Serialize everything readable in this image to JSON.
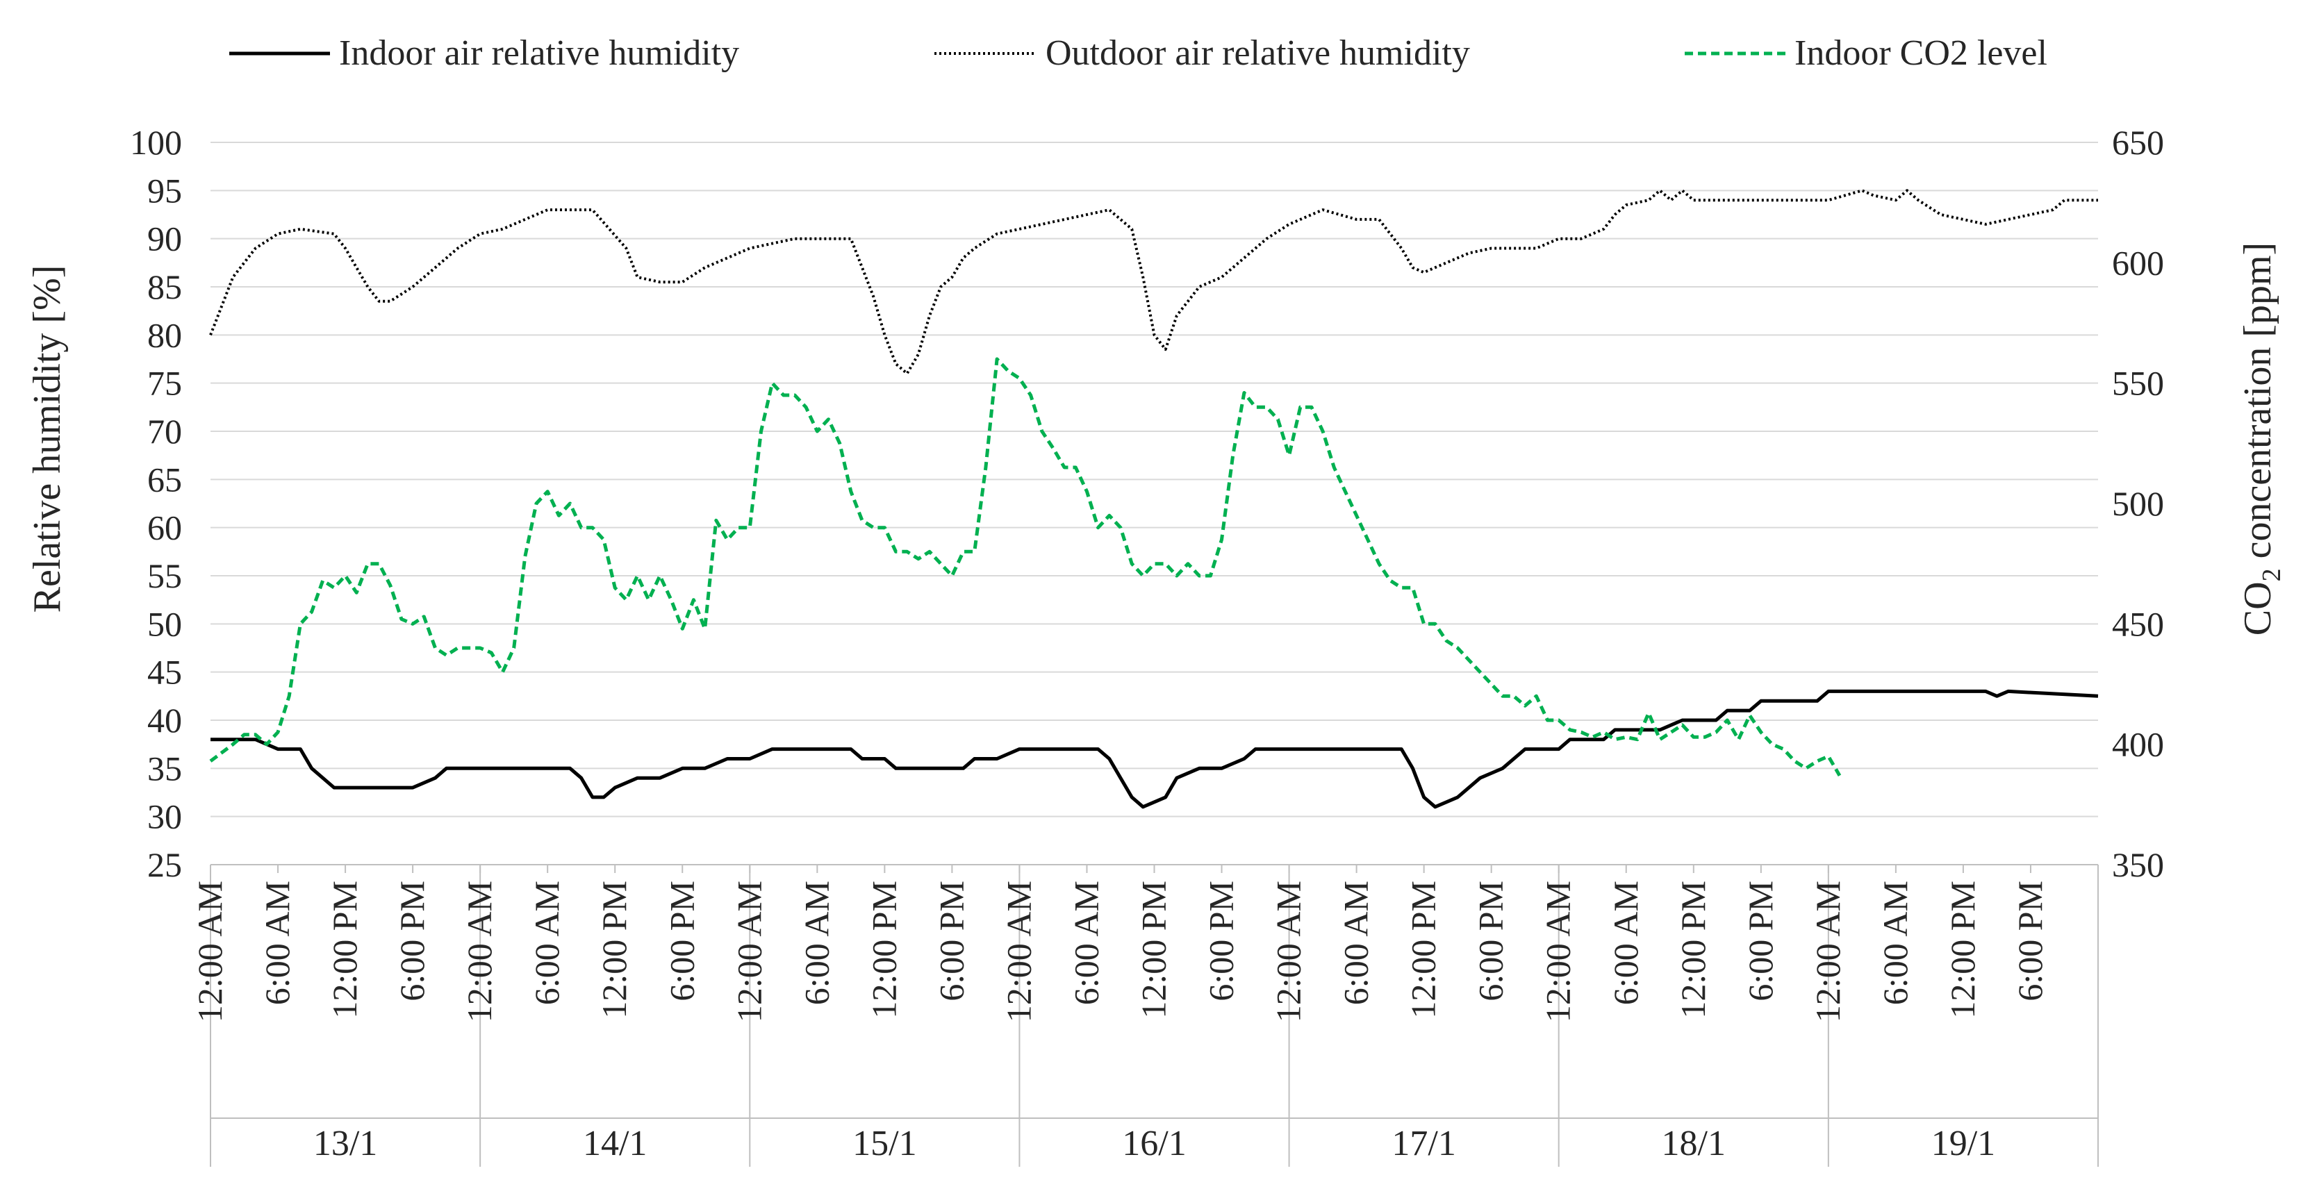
{
  "chart_data": {
    "type": "line",
    "title": "",
    "legend": {
      "position": "top",
      "entries": [
        "Indoor air relative humidity",
        "Outdoor air relative humidity",
        "Indoor CO2 level"
      ]
    },
    "y_left": {
      "label_main": "Relative humidity [%]",
      "ylim": [
        25,
        100
      ],
      "ticks": [
        "25",
        "30",
        "35",
        "40",
        "45",
        "50",
        "55",
        "60",
        "65",
        "70",
        "75",
        "80",
        "85",
        "90",
        "95",
        "100"
      ]
    },
    "y_right": {
      "label_prefix": "CO",
      "label_sub": "2",
      "label_suffix": " concentration [ppm]",
      "ylim": [
        350,
        650
      ],
      "ticks": [
        "350",
        "400",
        "450",
        "500",
        "550",
        "600",
        "650"
      ]
    },
    "x_axis": {
      "range_hours": [
        0,
        168
      ],
      "tick_labels": [
        "12:00 AM",
        "6:00 AM",
        "12:00 PM",
        "6:00 PM"
      ],
      "days": [
        "13/1",
        "14/1",
        "15/1",
        "16/1",
        "17/1",
        "18/1",
        "19/1"
      ]
    },
    "series": [
      {
        "name": "Indoor air relative humidity",
        "axis": "left",
        "color": "#000000",
        "style": "solid",
        "points": [
          [
            0,
            38
          ],
          [
            4,
            38
          ],
          [
            6,
            37
          ],
          [
            8,
            37
          ],
          [
            9,
            35
          ],
          [
            11,
            33
          ],
          [
            12,
            33
          ],
          [
            16,
            33
          ],
          [
            18,
            33
          ],
          [
            20,
            34
          ],
          [
            21,
            35
          ],
          [
            24,
            35
          ],
          [
            32,
            35
          ],
          [
            33,
            34
          ],
          [
            34,
            32
          ],
          [
            35,
            32
          ],
          [
            36,
            33
          ],
          [
            38,
            34
          ],
          [
            40,
            34
          ],
          [
            42,
            35
          ],
          [
            44,
            35
          ],
          [
            46,
            36
          ],
          [
            48,
            36
          ],
          [
            50,
            37
          ],
          [
            57,
            37
          ],
          [
            58,
            36
          ],
          [
            60,
            36
          ],
          [
            61,
            35
          ],
          [
            67,
            35
          ],
          [
            68,
            36
          ],
          [
            70,
            36
          ],
          [
            72,
            37
          ],
          [
            79,
            37
          ],
          [
            80,
            36
          ],
          [
            81,
            34
          ],
          [
            82,
            32
          ],
          [
            83,
            31
          ],
          [
            85,
            32
          ],
          [
            86,
            34
          ],
          [
            88,
            35
          ],
          [
            90,
            35
          ],
          [
            92,
            36
          ],
          [
            93,
            37
          ],
          [
            106,
            37
          ],
          [
            107,
            35
          ],
          [
            108,
            32
          ],
          [
            109,
            31
          ],
          [
            111,
            32
          ],
          [
            113,
            34
          ],
          [
            115,
            35
          ],
          [
            117,
            37
          ],
          [
            120,
            37
          ],
          [
            121,
            38
          ],
          [
            124,
            38
          ],
          [
            125,
            39
          ],
          [
            129,
            39
          ],
          [
            131,
            40
          ],
          [
            134,
            40
          ],
          [
            135,
            41
          ],
          [
            137,
            41
          ],
          [
            138,
            42
          ],
          [
            143,
            42
          ],
          [
            144,
            43
          ],
          [
            158,
            43
          ],
          [
            159,
            42.5
          ],
          [
            160,
            43
          ],
          [
            168,
            42.5
          ]
        ]
      },
      {
        "name": "Outdoor air relative humidity",
        "axis": "left",
        "color": "#000000",
        "style": "dotted",
        "points": [
          [
            0,
            80
          ],
          [
            1,
            83
          ],
          [
            2,
            86
          ],
          [
            4,
            89
          ],
          [
            6,
            90.5
          ],
          [
            8,
            91
          ],
          [
            11,
            90.5
          ],
          [
            12,
            89
          ],
          [
            13,
            87
          ],
          [
            14,
            85
          ],
          [
            15,
            83.5
          ],
          [
            16,
            83.5
          ],
          [
            18,
            85
          ],
          [
            20,
            87
          ],
          [
            22,
            89
          ],
          [
            24,
            90.5
          ],
          [
            26,
            91
          ],
          [
            28,
            92
          ],
          [
            30,
            93
          ],
          [
            34,
            93
          ],
          [
            37,
            89
          ],
          [
            38,
            86
          ],
          [
            40,
            85.5
          ],
          [
            42,
            85.5
          ],
          [
            44,
            87
          ],
          [
            46,
            88
          ],
          [
            48,
            89
          ],
          [
            50,
            89.5
          ],
          [
            52,
            90
          ],
          [
            57,
            90
          ],
          [
            58,
            87
          ],
          [
            59,
            84
          ],
          [
            60,
            80
          ],
          [
            61,
            77
          ],
          [
            62,
            76
          ],
          [
            63,
            78
          ],
          [
            64,
            82
          ],
          [
            65,
            85
          ],
          [
            66,
            86
          ],
          [
            67,
            88
          ],
          [
            68,
            89
          ],
          [
            70,
            90.5
          ],
          [
            72,
            91
          ],
          [
            74,
            91.5
          ],
          [
            78,
            92.5
          ],
          [
            80,
            93
          ],
          [
            82,
            91
          ],
          [
            83,
            86
          ],
          [
            84,
            80
          ],
          [
            85,
            78.5
          ],
          [
            86,
            82
          ],
          [
            88,
            85
          ],
          [
            90,
            86
          ],
          [
            92,
            88
          ],
          [
            94,
            90
          ],
          [
            96,
            91.5
          ],
          [
            98,
            92.5
          ],
          [
            99,
            93
          ],
          [
            102,
            92
          ],
          [
            104,
            92
          ],
          [
            106,
            89
          ],
          [
            107,
            87
          ],
          [
            108,
            86.5
          ],
          [
            110,
            87.5
          ],
          [
            112,
            88.5
          ],
          [
            114,
            89
          ],
          [
            118,
            89
          ],
          [
            120,
            90
          ],
          [
            122,
            90
          ],
          [
            124,
            91
          ],
          [
            125,
            92.5
          ],
          [
            126,
            93.5
          ],
          [
            128,
            94
          ],
          [
            129,
            95
          ],
          [
            130,
            94
          ],
          [
            131,
            95
          ],
          [
            132,
            94
          ],
          [
            139,
            94
          ],
          [
            144,
            94
          ],
          [
            147,
            95
          ],
          [
            148,
            94.5
          ],
          [
            150,
            94
          ],
          [
            151,
            95
          ],
          [
            152,
            94
          ],
          [
            154,
            92.5
          ],
          [
            156,
            92
          ],
          [
            158,
            91.5
          ],
          [
            160,
            92
          ],
          [
            162,
            92.5
          ],
          [
            164,
            93
          ],
          [
            165,
            94
          ],
          [
            166,
            94
          ],
          [
            168,
            94
          ]
        ]
      },
      {
        "name": "Indoor CO2 level",
        "axis": "right",
        "color": "#00b050",
        "style": "dashed",
        "points": [
          [
            0,
            393
          ],
          [
            2,
            400
          ],
          [
            3,
            404
          ],
          [
            4,
            404
          ],
          [
            5,
            400
          ],
          [
            6,
            405
          ],
          [
            7,
            420
          ],
          [
            8,
            450
          ],
          [
            9,
            455
          ],
          [
            10,
            468
          ],
          [
            11,
            465
          ],
          [
            12,
            470
          ],
          [
            13,
            463
          ],
          [
            14,
            475
          ],
          [
            15,
            475
          ],
          [
            16,
            466
          ],
          [
            17,
            452
          ],
          [
            18,
            450
          ],
          [
            19,
            453
          ],
          [
            20,
            440
          ],
          [
            21,
            437
          ],
          [
            22,
            440
          ],
          [
            24,
            440
          ],
          [
            25,
            438
          ],
          [
            26,
            430
          ],
          [
            27,
            440
          ],
          [
            28,
            478
          ],
          [
            29,
            500
          ],
          [
            30,
            505
          ],
          [
            31,
            495
          ],
          [
            32,
            500
          ],
          [
            33,
            490
          ],
          [
            34,
            490
          ],
          [
            35,
            485
          ],
          [
            36,
            465
          ],
          [
            37,
            460
          ],
          [
            38,
            470
          ],
          [
            39,
            460
          ],
          [
            40,
            470
          ],
          [
            41,
            460
          ],
          [
            42,
            448
          ],
          [
            43,
            460
          ],
          [
            44,
            448
          ],
          [
            45,
            493
          ],
          [
            46,
            485
          ],
          [
            47,
            490
          ],
          [
            48,
            490
          ],
          [
            49,
            530
          ],
          [
            50,
            550
          ],
          [
            51,
            545
          ],
          [
            52,
            545
          ],
          [
            53,
            540
          ],
          [
            54,
            530
          ],
          [
            55,
            535
          ],
          [
            56,
            525
          ],
          [
            57,
            505
          ],
          [
            58,
            493
          ],
          [
            59,
            490
          ],
          [
            60,
            490
          ],
          [
            61,
            480
          ],
          [
            62,
            480
          ],
          [
            63,
            477
          ],
          [
            64,
            480
          ],
          [
            65,
            475
          ],
          [
            66,
            470
          ],
          [
            67,
            480
          ],
          [
            68,
            480
          ],
          [
            69,
            515
          ],
          [
            70,
            560
          ],
          [
            71,
            555
          ],
          [
            72,
            552
          ],
          [
            73,
            545
          ],
          [
            74,
            530
          ],
          [
            75,
            523
          ],
          [
            76,
            515
          ],
          [
            77,
            515
          ],
          [
            78,
            505
          ],
          [
            79,
            490
          ],
          [
            80,
            495
          ],
          [
            81,
            490
          ],
          [
            82,
            475
          ],
          [
            83,
            470
          ],
          [
            84,
            475
          ],
          [
            85,
            475
          ],
          [
            86,
            470
          ],
          [
            87,
            475
          ],
          [
            88,
            470
          ],
          [
            89,
            470
          ],
          [
            90,
            485
          ],
          [
            91,
            520
          ],
          [
            92,
            546
          ],
          [
            93,
            540
          ],
          [
            94,
            540
          ],
          [
            95,
            535
          ],
          [
            96,
            520
          ],
          [
            97,
            540
          ],
          [
            98,
            540
          ],
          [
            99,
            530
          ],
          [
            100,
            515
          ],
          [
            101,
            505
          ],
          [
            102,
            495
          ],
          [
            103,
            485
          ],
          [
            104,
            475
          ],
          [
            105,
            468
          ],
          [
            106,
            465
          ],
          [
            107,
            465
          ],
          [
            108,
            450
          ],
          [
            109,
            450
          ],
          [
            110,
            443
          ],
          [
            111,
            440
          ],
          [
            112,
            435
          ],
          [
            113,
            430
          ],
          [
            114,
            425
          ],
          [
            115,
            420
          ],
          [
            116,
            420
          ],
          [
            117,
            416
          ],
          [
            118,
            420
          ],
          [
            119,
            410
          ],
          [
            120,
            410
          ],
          [
            121,
            406
          ],
          [
            122,
            405
          ],
          [
            123,
            403
          ],
          [
            124,
            405
          ],
          [
            125,
            402
          ],
          [
            126,
            403
          ],
          [
            127,
            402
          ],
          [
            128,
            413
          ],
          [
            129,
            402
          ],
          [
            130,
            405
          ],
          [
            131,
            408
          ],
          [
            132,
            403
          ],
          [
            133,
            403
          ],
          [
            134,
            405
          ],
          [
            135,
            410
          ],
          [
            136,
            402
          ],
          [
            137,
            412
          ],
          [
            138,
            405
          ],
          [
            139,
            400
          ],
          [
            140,
            398
          ],
          [
            141,
            393
          ],
          [
            142,
            390
          ],
          [
            143,
            393
          ],
          [
            144,
            395
          ],
          [
            145,
            387
          ]
        ]
      }
    ]
  },
  "colors": {
    "grid": "#d9d9d9",
    "axis": "#bfbfbf",
    "text": "#262626",
    "co2": "#00b050"
  }
}
